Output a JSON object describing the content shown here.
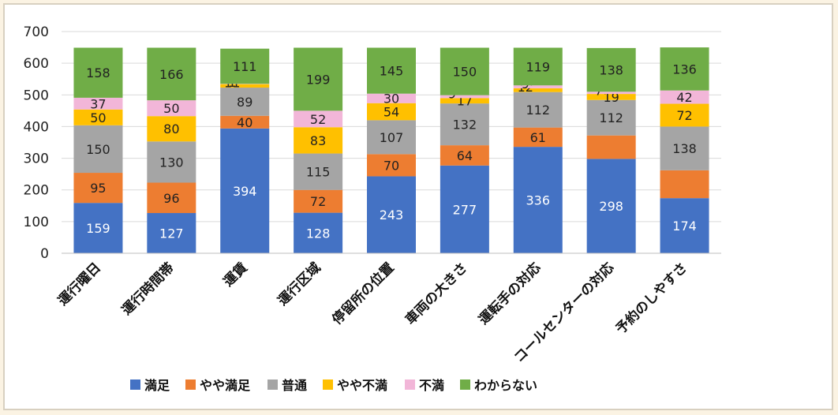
{
  "chart_data": {
    "type": "bar",
    "stacked": true,
    "title": "",
    "xlabel": "",
    "ylabel": "",
    "ylim": [
      0,
      700
    ],
    "yticks": [
      0,
      100,
      200,
      300,
      400,
      500,
      600,
      700
    ],
    "grid": true,
    "legend_position": "bottom",
    "categories": [
      "運行曜日",
      "運行時間帯",
      "運賃",
      "運行区域",
      "停留所の位置",
      "車両の大きさ",
      "運転手の対応",
      "コールセンターの対応",
      "予約のしやすさ"
    ],
    "series": [
      {
        "name": "満足",
        "color": "#4472c4",
        "values": [
          159,
          127,
          394,
          128,
          243,
          277,
          336,
          298,
          174
        ],
        "labels": [
          "159",
          "127",
          "394",
          "128",
          "243",
          "277",
          "336",
          "298",
          "174"
        ]
      },
      {
        "name": "やや満足",
        "color": "#ed7d31",
        "values": [
          95,
          96,
          40,
          72,
          70,
          64,
          61,
          74,
          88
        ],
        "labels": [
          "95",
          "96",
          "40",
          "72",
          "70",
          "64",
          "61",
          "",
          ""
        ]
      },
      {
        "name": "普通",
        "color": "#a5a5a5",
        "values": [
          150,
          130,
          89,
          115,
          107,
          132,
          112,
          112,
          138
        ],
        "labels": [
          "150",
          "130",
          "89",
          "115",
          "107",
          "132",
          "112",
          "112",
          "138"
        ]
      },
      {
        "name": "やや不満",
        "color": "#ffc000",
        "values": [
          50,
          80,
          11,
          83,
          54,
          17,
          12,
          19,
          72
        ],
        "labels": [
          "50",
          "80",
          "11",
          "83",
          "54",
          "17",
          "12",
          "19",
          "72"
        ]
      },
      {
        "name": "不満",
        "color": "#f2b6d8",
        "values": [
          37,
          50,
          1,
          52,
          30,
          9,
          9,
          7,
          42
        ],
        "labels": [
          "37",
          "50",
          "1",
          "52",
          "30",
          "9",
          "9",
          "7",
          "42"
        ]
      },
      {
        "name": "わからない",
        "color": "#70ad47",
        "values": [
          158,
          166,
          111,
          199,
          145,
          150,
          119,
          138,
          136
        ],
        "labels": [
          "158",
          "166",
          "111",
          "199",
          "145",
          "150",
          "119",
          "138",
          "136"
        ]
      }
    ]
  }
}
